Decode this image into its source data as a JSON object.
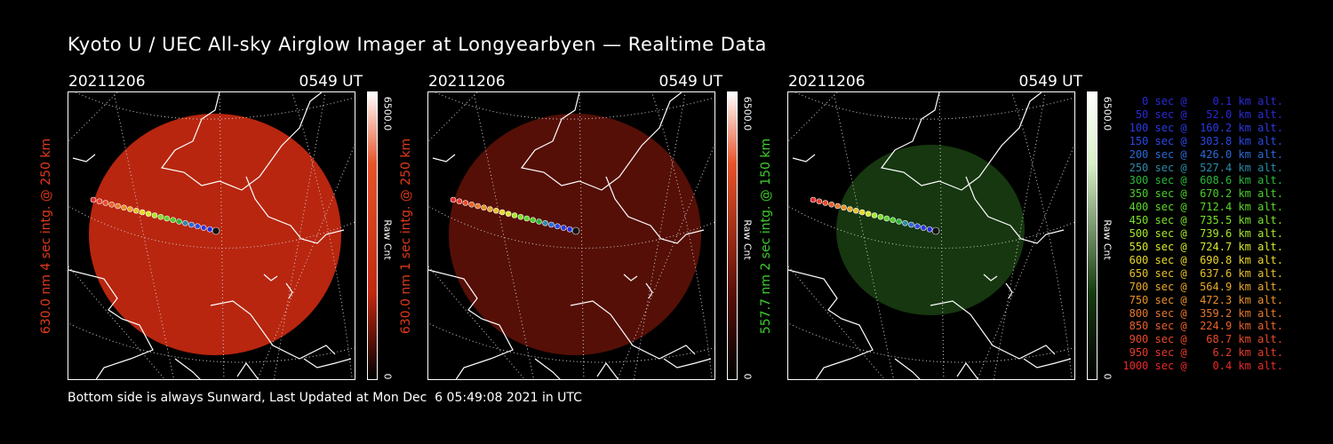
{
  "title": "Kyoto U / UEC All-sky Airglow Imager at Longyearbyen — Realtime Data",
  "footer": "Bottom side is always Sunward, Last Updated at Mon Dec  6 05:49:08 2021 in UTC",
  "panels": [
    {
      "date": "20211206",
      "time": "0549 UT",
      "ylabel": "630.0 nm 4 sec intg. @ 250 km",
      "label_color": "#e03a1a",
      "cb_max": "6500.0",
      "cb_min": "0",
      "cb_label": "Raw Cnt",
      "cb_top": "#e8532a",
      "disc_color": "#c22810",
      "disc_opacity": 0.95
    },
    {
      "date": "20211206",
      "time": "0549 UT",
      "ylabel": "630.0 nm 1 sec intg. @ 250 km",
      "label_color": "#e03a1a",
      "cb_max": "6500.0",
      "cb_min": "0",
      "cb_label": "Raw Cnt",
      "cb_top": "#e8532a",
      "disc_color": "#5a1006",
      "disc_opacity": 0.95
    },
    {
      "date": "20211206",
      "time": "0549 UT",
      "ylabel": "557.7 nm 2 sec intg. @ 150 km",
      "label_color": "#3ccf2a",
      "cb_max": "6500.0",
      "cb_min": "0",
      "cb_label": "Raw Cnt",
      "cb_top": "#d8f0c8",
      "disc_color": "#173a10",
      "disc_opacity": 0.95
    }
  ],
  "legend": [
    {
      "text": "   0 sec @    0.1 km alt.",
      "color": "#2a2ad8"
    },
    {
      "text": "  50 sec @   52.0 km alt.",
      "color": "#2a2ad8"
    },
    {
      "text": " 100 sec @  160.2 km alt.",
      "color": "#2a3ae0"
    },
    {
      "text": " 150 sec @  303.8 km alt.",
      "color": "#2a4ae6"
    },
    {
      "text": " 200 sec @  426.0 km alt.",
      "color": "#2a6ad8"
    },
    {
      "text": " 250 sec @  527.4 km alt.",
      "color": "#2a8aa8"
    },
    {
      "text": " 300 sec @  608.6 km alt.",
      "color": "#2ab83a"
    },
    {
      "text": " 350 sec @  670.2 km alt.",
      "color": "#4ad02a"
    },
    {
      "text": " 400 sec @  712.4 km alt.",
      "color": "#5ad82a"
    },
    {
      "text": " 450 sec @  735.5 km alt.",
      "color": "#7ae02a"
    },
    {
      "text": " 500 sec @  739.6 km alt.",
      "color": "#a8e82a"
    },
    {
      "text": " 550 sec @  724.7 km alt.",
      "color": "#d8e82a"
    },
    {
      "text": " 600 sec @  690.8 km alt.",
      "color": "#e8d82a"
    },
    {
      "text": " 650 sec @  637.6 km alt.",
      "color": "#e8c02a"
    },
    {
      "text": " 700 sec @  564.9 km alt.",
      "color": "#e8a82a"
    },
    {
      "text": " 750 sec @  472.3 km alt.",
      "color": "#e8902a"
    },
    {
      "text": " 800 sec @  359.2 km alt.",
      "color": "#e8782a"
    },
    {
      "text": " 850 sec @  224.9 km alt.",
      "color": "#e8602a"
    },
    {
      "text": " 900 sec @   68.7 km alt.",
      "color": "#e84a2a"
    },
    {
      "text": " 950 sec @    6.2 km alt.",
      "color": "#e83a2a"
    },
    {
      "text": "1000 sec @    0.4 km alt.",
      "color": "#e82a2a"
    }
  ]
}
